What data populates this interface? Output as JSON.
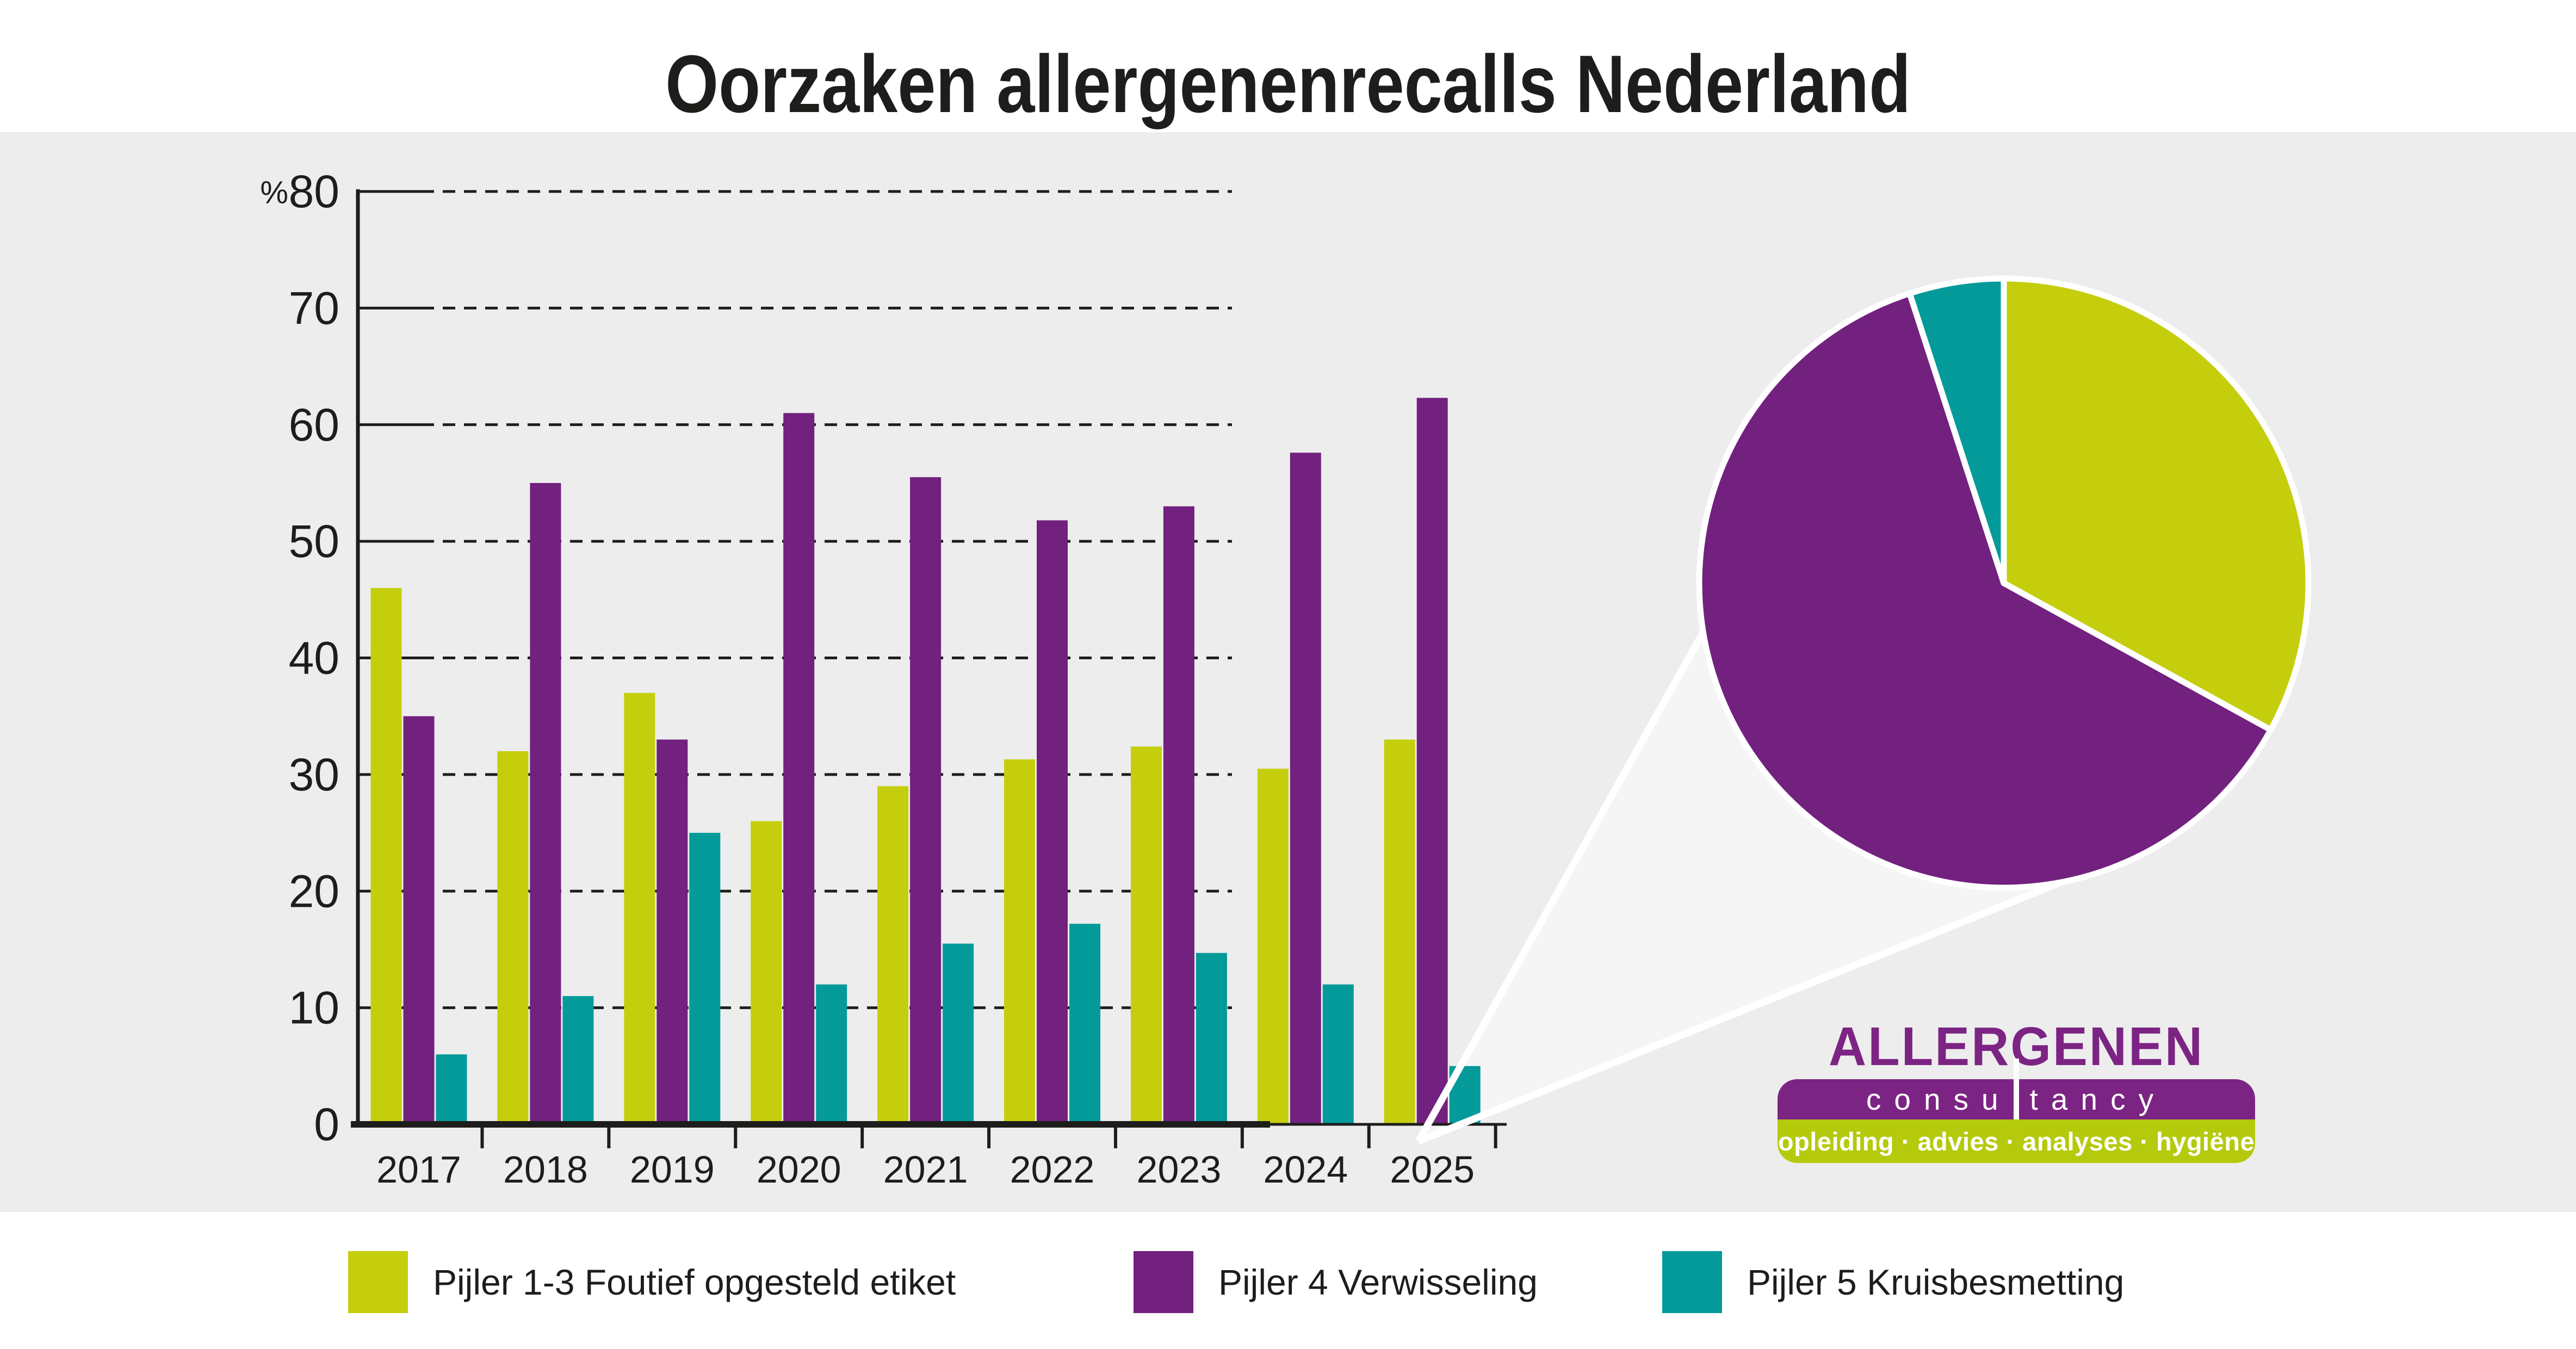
{
  "title": "Oorzaken allergenenrecalls Nederland",
  "colors": {
    "background": "#ffffff",
    "panel": "#ededed",
    "ink": "#1d1d1b",
    "series1": "#c5ce0d",
    "series2": "#72217f",
    "series3": "#049a9a",
    "logo_purple": "#7c2483",
    "logo_green": "#b5c90d",
    "callout_fill": "#f5f5f5",
    "white": "#ffffff"
  },
  "chart_data": {
    "type": "bar",
    "title": "Oorzaken allergenenrecalls Nederland",
    "unit": "%",
    "xlabel": "",
    "ylabel": "%",
    "ylim": [
      0,
      80
    ],
    "ytick_step": 10,
    "grid": "dashed horizontal",
    "legend_position": "bottom",
    "categories": [
      "2017",
      "2018",
      "2019",
      "2020",
      "2021",
      "2022",
      "2023",
      "2024",
      "2025"
    ],
    "series": [
      {
        "name": "Pijler 1-3 Foutief opgesteld etiket",
        "color_key": "series1",
        "values": [
          46,
          32,
          37,
          26,
          29,
          31.3,
          32.4,
          30.5,
          33
        ]
      },
      {
        "name": "Pijler 4 Verwisseling",
        "color_key": "series2",
        "values": [
          35,
          55,
          33,
          61,
          55.5,
          51.8,
          53,
          57.6,
          62.3
        ]
      },
      {
        "name": "Pijler 5 Kruisbesmetting",
        "color_key": "series3",
        "values": [
          6,
          11,
          25,
          12,
          15.5,
          17.2,
          14.7,
          12,
          5
        ]
      }
    ],
    "pie": {
      "year": "2025",
      "start": "top",
      "direction": "clockwise",
      "values": [
        33,
        62,
        5
      ],
      "labels": [
        "Pijler 1-3 Foutief opgesteld etiket",
        "Pijler 4 Verwisseling",
        "Pijler 5 Kruisbesmetting"
      ]
    }
  },
  "logo": {
    "line1": "ALLERGENEN",
    "line2_left": "consu",
    "line2_right": "tancy",
    "line3": "opleiding · advies · analyses · hygiëne"
  }
}
